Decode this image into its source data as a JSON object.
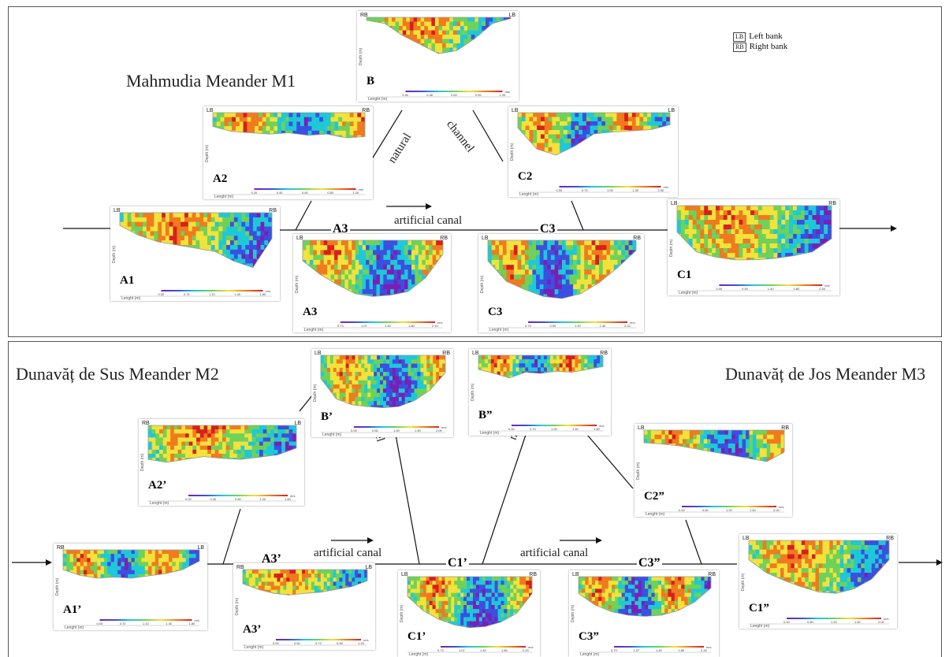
{
  "top": {
    "title": "Mahmudia Meander M1",
    "legend": [
      {
        "abbr": "LB",
        "text": "Left bank"
      },
      {
        "abbr": "RB",
        "text": "Right bank"
      }
    ],
    "natural_label_1": "natural",
    "natural_label_2": "channel",
    "artificial_label": "artificial canal",
    "sections": {
      "a3": "A3",
      "c3": "C3"
    }
  },
  "bottom": {
    "title_left": "Dunavăț de Sus Meander M2",
    "title_right": "Dunavăț de Jos Meander M3",
    "left_natural_1": "natural",
    "left_natural_2": "channel",
    "right_natural_1": "natural",
    "right_natural_2": "channel",
    "left_artificial": "artificial canal",
    "right_artificial": "artificial canal",
    "sections": {
      "a3p": "A3’",
      "c1p": "C1’",
      "c3pp": "C3”"
    }
  },
  "axis_text": {
    "depth": "Depth (m)",
    "length": "Lenght (m)",
    "unit": "m/s"
  },
  "profiles": [
    {
      "id": "B",
      "label": "B",
      "left_bank": "RB",
      "right_bank": "LB",
      "scale": [
        "0.00",
        "0.36",
        "0.69",
        "0.99",
        "1.33"
      ]
    },
    {
      "id": "A2",
      "label": "A2",
      "left_bank": "LB",
      "right_bank": "RB",
      "scale": [
        "0.20",
        "0.40",
        "0.60",
        "0.80",
        "1.20"
      ]
    },
    {
      "id": "C2",
      "label": "C2",
      "left_bank": "LB",
      "right_bank": "LB",
      "scale": [
        "0.00",
        "0.73",
        "1.00",
        "1.30",
        "2.00"
      ]
    },
    {
      "id": "A1",
      "label": "A1",
      "left_bank": "LB",
      "right_bank": "RB",
      "scale": [
        "0.00",
        "0.73",
        "1.10",
        "1.40",
        "1.80"
      ]
    },
    {
      "id": "A3",
      "label": "A3",
      "left_bank": "LB",
      "right_bank": "RB",
      "scale": [
        "0.73",
        "1.07",
        "1.40",
        "1.80",
        "2.10"
      ]
    },
    {
      "id": "C3",
      "label": "C3",
      "left_bank": "LB",
      "right_bank": "RB",
      "scale": [
        "0.73",
        "0.90",
        "1.20",
        "1.40",
        "2.10"
      ]
    },
    {
      "id": "C1",
      "label": "C1",
      "left_bank": "LB",
      "right_bank": "RB",
      "scale": [
        "0.00",
        "0.90",
        "1.40",
        "1.80",
        "2.40"
      ]
    },
    {
      "id": "Bp",
      "label": "B’",
      "left_bank": "LB",
      "right_bank": "RB",
      "scale": [
        "0.00",
        "0.50",
        "1.00",
        "1.50",
        "2.00"
      ]
    },
    {
      "id": "Bpp",
      "label": "B”",
      "left_bank": "LB",
      "right_bank": "RB",
      "scale": [
        "0.00",
        "0.70",
        "1.00",
        "1.40",
        "1.80"
      ]
    },
    {
      "id": "A2p",
      "label": "A2’",
      "left_bank": "RB",
      "right_bank": "LB",
      "scale": [
        "0.00",
        "0.40",
        "0.80",
        "1.20",
        "1.60"
      ]
    },
    {
      "id": "C2pp",
      "label": "C2”",
      "left_bank": "LB",
      "right_bank": "RB",
      "scale": [
        "0.00",
        "0.60",
        "1.20",
        "1.60",
        "2.00"
      ]
    },
    {
      "id": "A1p",
      "label": "A1’",
      "left_bank": "RB",
      "right_bank": "LB",
      "scale": [
        "0.00",
        "0.70",
        "1.10",
        "1.40",
        "1.80"
      ]
    },
    {
      "id": "A3p",
      "label": "A3’",
      "left_bank": "RB",
      "right_bank": "LB",
      "scale": [
        "0.00",
        "0.50",
        "0.73",
        "0.99",
        "1.33"
      ]
    },
    {
      "id": "C1p",
      "label": "C1’",
      "left_bank": "LB",
      "right_bank": "RB",
      "scale": [
        "0.73",
        "1.07",
        "1.40",
        "1.80",
        "2.20"
      ]
    },
    {
      "id": "C3pp",
      "label": "C3”",
      "left_bank": "LB",
      "right_bank": "RB",
      "scale": [
        "0.73",
        "1.07",
        "1.40",
        "1.80",
        "2.20"
      ]
    },
    {
      "id": "C1pp",
      "label": "C1”",
      "left_bank": "LB",
      "right_bank": "RB",
      "scale": [
        "0.00",
        "0.80",
        "1.20",
        "1.60",
        "2.00"
      ]
    }
  ],
  "colors": {
    "scale": [
      "#7a1fb5",
      "#3a50e0",
      "#1ec8d8",
      "#6ed25a",
      "#f2e23a",
      "#f07a1e",
      "#d81e1e"
    ],
    "frame": "#555555"
  }
}
